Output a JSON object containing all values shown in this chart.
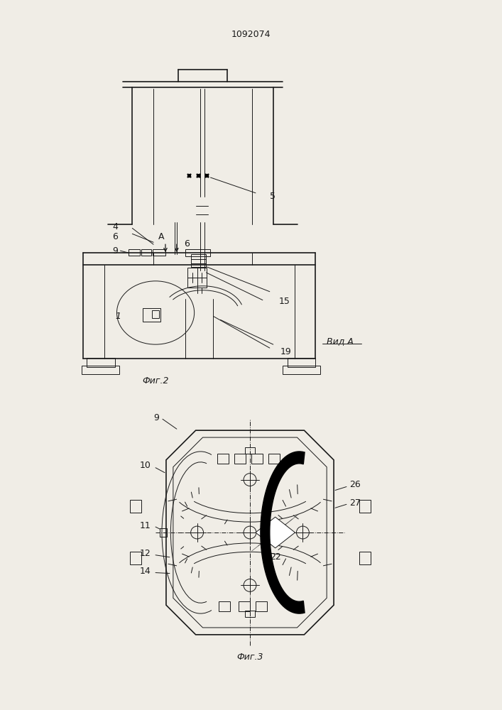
{
  "title": "1092074",
  "bg_color": "#f0ede6",
  "line_color": "#1a1a1a",
  "fig2_label": "Фиг.2",
  "fig3_label": "Фиг.3",
  "vid_a_label": "Вид A"
}
